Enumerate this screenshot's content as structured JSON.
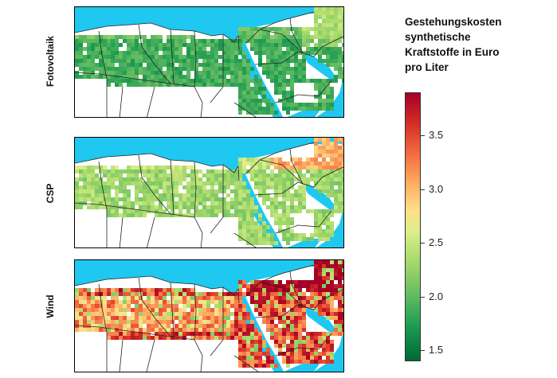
{
  "panels": [
    {
      "label": "Fotovoltaik",
      "scheme": "pv"
    },
    {
      "label": "CSP",
      "scheme": "csp"
    },
    {
      "label": "Wind",
      "scheme": "wind"
    }
  ],
  "legend": {
    "title_lines": [
      "Gestehungskosten",
      "synthetische",
      "Kraftstoffe in Euro",
      "pro Liter"
    ],
    "min": 1.4,
    "max": 3.9,
    "ticks": [
      "1.5",
      "2.0",
      "2.5",
      "3.0",
      "3.5"
    ]
  },
  "colors": {
    "sea": "#1ec8f0",
    "land_outside": "#ffffff",
    "border": "#222222",
    "low": "#006837",
    "high": "#a50026"
  }
}
